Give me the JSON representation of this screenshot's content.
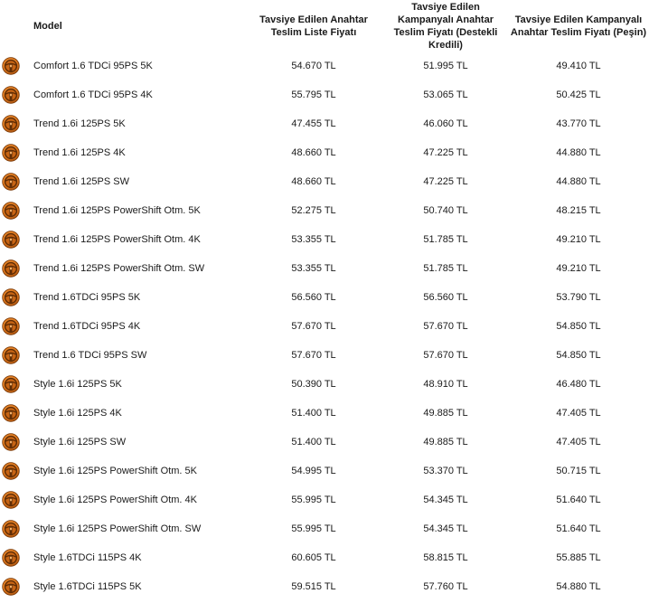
{
  "table": {
    "headers": {
      "model": "Model",
      "list_price": "Tavsiye Edilen Anahtar Teslim Liste Fiyatı",
      "campaign_credit": "Tavsiye Edilen Kampanyalı Anahtar Teslim Fiyatı (Destekli Kredili)",
      "campaign_cash": "Tavsiye Edilen Kampanyalı Anahtar Teslim Fiyatı (Peşin)"
    },
    "row_icon": "steering-wheel-icon",
    "accent_color": "#e07a1f",
    "rows": [
      {
        "model": "Comfort 1.6 TDCi 95PS 5K",
        "list_price": "54.670 TL",
        "campaign_credit": "51.995 TL",
        "campaign_cash": "49.410 TL"
      },
      {
        "model": "Comfort 1.6 TDCi 95PS 4K",
        "list_price": "55.795 TL",
        "campaign_credit": "53.065 TL",
        "campaign_cash": "50.425 TL"
      },
      {
        "model": "Trend 1.6i 125PS 5K",
        "list_price": "47.455 TL",
        "campaign_credit": "46.060 TL",
        "campaign_cash": "43.770 TL"
      },
      {
        "model": "Trend 1.6i 125PS 4K",
        "list_price": "48.660 TL",
        "campaign_credit": "47.225 TL",
        "campaign_cash": "44.880 TL"
      },
      {
        "model": "Trend 1.6i 125PS SW",
        "list_price": "48.660 TL",
        "campaign_credit": "47.225 TL",
        "campaign_cash": "44.880 TL"
      },
      {
        "model": "Trend 1.6i 125PS PowerShift Otm. 5K",
        "list_price": "52.275 TL",
        "campaign_credit": "50.740 TL",
        "campaign_cash": "48.215 TL"
      },
      {
        "model": "Trend 1.6i 125PS PowerShift Otm. 4K",
        "list_price": "53.355 TL",
        "campaign_credit": "51.785 TL",
        "campaign_cash": "49.210 TL"
      },
      {
        "model": "Trend 1.6i 125PS PowerShift Otm. SW",
        "list_price": "53.355 TL",
        "campaign_credit": "51.785 TL",
        "campaign_cash": "49.210 TL"
      },
      {
        "model": "Trend 1.6TDCi 95PS 5K",
        "list_price": "56.560 TL",
        "campaign_credit": "56.560 TL",
        "campaign_cash": "53.790 TL"
      },
      {
        "model": "Trend 1.6TDCi 95PS 4K",
        "list_price": "57.670 TL",
        "campaign_credit": "57.670 TL",
        "campaign_cash": "54.850 TL"
      },
      {
        "model": "Trend 1.6 TDCi 95PS SW",
        "list_price": "57.670 TL",
        "campaign_credit": "57.670 TL",
        "campaign_cash": "54.850 TL"
      },
      {
        "model": "Style 1.6i 125PS 5K",
        "list_price": "50.390 TL",
        "campaign_credit": "48.910 TL",
        "campaign_cash": "46.480 TL"
      },
      {
        "model": "Style 1.6i 125PS 4K",
        "list_price": "51.400 TL",
        "campaign_credit": "49.885 TL",
        "campaign_cash": "47.405 TL"
      },
      {
        "model": "Style 1.6i 125PS SW",
        "list_price": "51.400 TL",
        "campaign_credit": "49.885 TL",
        "campaign_cash": "47.405 TL"
      },
      {
        "model": "Style 1.6i 125PS PowerShift Otm. 5K",
        "list_price": "54.995 TL",
        "campaign_credit": "53.370 TL",
        "campaign_cash": "50.715 TL"
      },
      {
        "model": "Style 1.6i 125PS PowerShift Otm. 4K",
        "list_price": "55.995 TL",
        "campaign_credit": "54.345 TL",
        "campaign_cash": "51.640 TL"
      },
      {
        "model": "Style 1.6i 125PS PowerShift Otm. SW",
        "list_price": "55.995 TL",
        "campaign_credit": "54.345 TL",
        "campaign_cash": "51.640 TL"
      },
      {
        "model": "Style 1.6TDCi 115PS 4K",
        "list_price": "60.605 TL",
        "campaign_credit": "58.815 TL",
        "campaign_cash": "55.885 TL"
      },
      {
        "model": "Style 1.6TDCi 115PS 5K",
        "list_price": "59.515 TL",
        "campaign_credit": "57.760 TL",
        "campaign_cash": "54.880 TL"
      }
    ]
  }
}
